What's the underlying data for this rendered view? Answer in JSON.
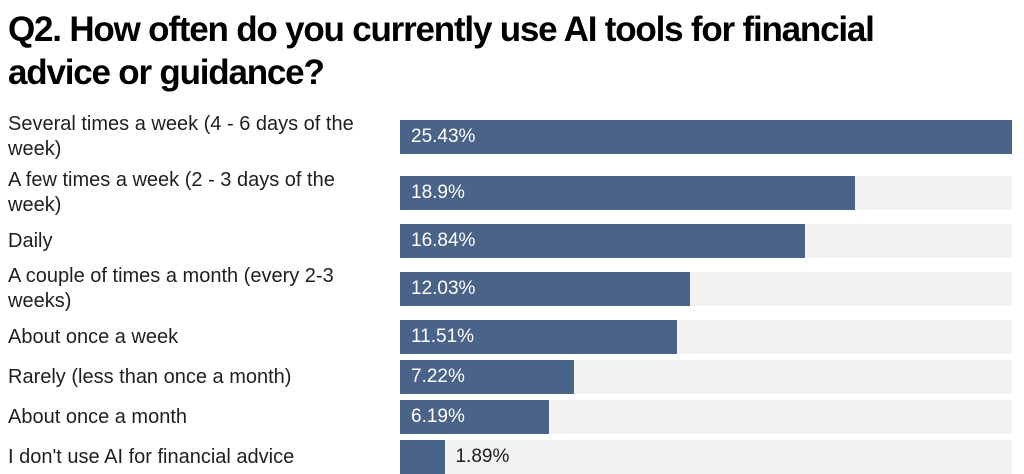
{
  "chart_data": {
    "type": "bar",
    "orientation": "horizontal",
    "title": "Q2. How often do you currently use AI tools for financial advice or guidance?",
    "title_display": "Q2. How often do you currently use AI tools for financial\nadvice or guidance?",
    "categories": [
      "Several times a week (4 - 6 days of the week)",
      "A few times a week (2 - 3 days of the week)",
      "Daily",
      "A couple of times a month (every 2-3 weeks)",
      "About once a week",
      "Rarely (less than once a month)",
      "About once a month",
      "I don't use AI for financial advice"
    ],
    "values": [
      25.43,
      18.9,
      16.84,
      12.03,
      11.51,
      7.22,
      6.19,
      1.89
    ],
    "value_labels": [
      "25.43%",
      "18.9%",
      "16.84%",
      "12.03%",
      "11.51%",
      "7.22%",
      "6.19%",
      "1.89%"
    ],
    "xlim": [
      0,
      25.43
    ],
    "bars_scaled_to_max": true,
    "grid": false,
    "legend": "none",
    "colors": {
      "bar": "#4a6389",
      "track": "#f2f2f2",
      "value_label_inside": "#ffffff",
      "value_label_outside": "#1c1c1c",
      "title": "#000000",
      "category_label": "#1f1f1f",
      "background": "#ffffff"
    }
  }
}
